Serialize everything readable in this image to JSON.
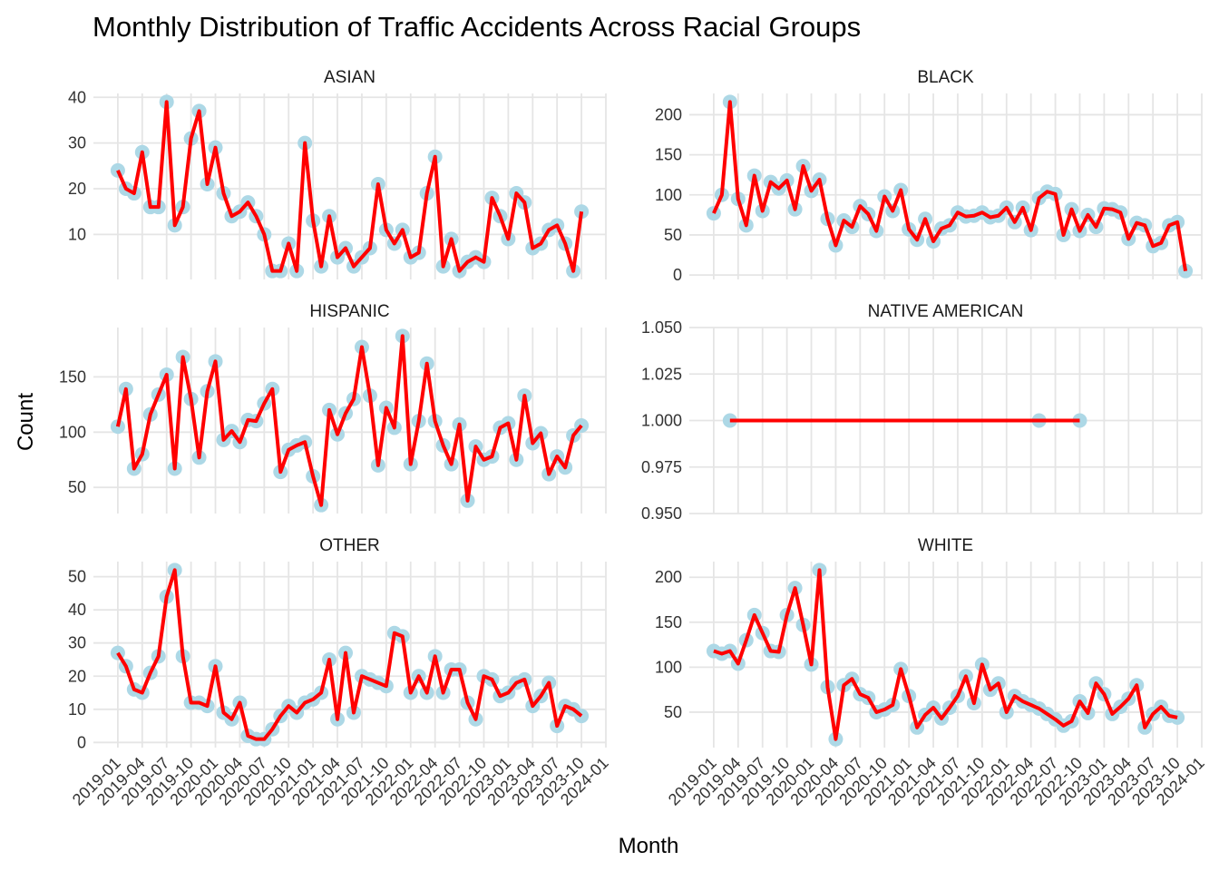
{
  "title": "Monthly Distribution of Traffic Accidents Across Racial Groups",
  "x_label": "Month",
  "y_label": "Count",
  "chart_data": [
    {
      "type": "line",
      "title": "ASIAN",
      "color": "#ff0000",
      "point_color": "#add8e6",
      "grid": true,
      "x": [
        "2019-01",
        "2019-02",
        "2019-03",
        "2019-04",
        "2019-05",
        "2019-06",
        "2019-07",
        "2019-08",
        "2019-09",
        "2019-10",
        "2019-11",
        "2019-12",
        "2020-01",
        "2020-02",
        "2020-03",
        "2020-04",
        "2020-05",
        "2020-06",
        "2020-07",
        "2020-08",
        "2020-09",
        "2020-10",
        "2020-11",
        "2020-12",
        "2021-01",
        "2021-02",
        "2021-03",
        "2021-04",
        "2021-05",
        "2021-06",
        "2021-07",
        "2021-08",
        "2021-09",
        "2021-10",
        "2021-11",
        "2021-12",
        "2022-01",
        "2022-02",
        "2022-03",
        "2022-04",
        "2022-05",
        "2022-06",
        "2022-07",
        "2022-08",
        "2022-09",
        "2022-10",
        "2022-11",
        "2022-12",
        "2023-01",
        "2023-02",
        "2023-03",
        "2023-04",
        "2023-05",
        "2023-06",
        "2023-07",
        "2023-08",
        "2023-09",
        "2023-10"
      ],
      "values": [
        24,
        20,
        19,
        28,
        16,
        16,
        39,
        12,
        16,
        31,
        37,
        21,
        29,
        19,
        14,
        15,
        17,
        14,
        10,
        2,
        2,
        8,
        2,
        30,
        13,
        3,
        14,
        5,
        7,
        3,
        5,
        7,
        21,
        11,
        8,
        11,
        5,
        6,
        19,
        27,
        3,
        9,
        2,
        4,
        5,
        4,
        18,
        14,
        9,
        19,
        17,
        7,
        8,
        11,
        12,
        8,
        2,
        15
      ],
      "ylim": [
        0.15,
        40.85
      ],
      "yticks": [
        10,
        20,
        30,
        40
      ],
      "xlim": [
        "2018-10",
        "2024-01"
      ],
      "xticks": [
        "2019-01",
        "2019-04",
        "2019-07",
        "2019-10",
        "2020-01",
        "2020-04",
        "2020-07",
        "2020-10",
        "2021-01",
        "2021-04",
        "2021-07",
        "2021-10",
        "2022-01",
        "2022-04",
        "2022-07",
        "2022-10",
        "2023-01",
        "2023-04",
        "2023-07",
        "2023-10",
        "2024-01"
      ]
    },
    {
      "type": "line",
      "title": "BLACK",
      "color": "#ff0000",
      "point_color": "#add8e6",
      "grid": true,
      "x": [
        "2019-01",
        "2019-02",
        "2019-03",
        "2019-04",
        "2019-05",
        "2019-06",
        "2019-07",
        "2019-08",
        "2019-09",
        "2019-10",
        "2019-11",
        "2019-12",
        "2020-01",
        "2020-02",
        "2020-03",
        "2020-04",
        "2020-05",
        "2020-06",
        "2020-07",
        "2020-08",
        "2020-09",
        "2020-10",
        "2020-11",
        "2020-12",
        "2021-01",
        "2021-02",
        "2021-03",
        "2021-04",
        "2021-05",
        "2021-06",
        "2021-07",
        "2021-08",
        "2021-09",
        "2021-10",
        "2021-11",
        "2021-12",
        "2022-01",
        "2022-02",
        "2022-03",
        "2022-04",
        "2022-05",
        "2022-06",
        "2022-07",
        "2022-08",
        "2022-09",
        "2022-10",
        "2022-11",
        "2022-12",
        "2023-01",
        "2023-02",
        "2023-03",
        "2023-04",
        "2023-05",
        "2023-06",
        "2023-07",
        "2023-08",
        "2023-09",
        "2023-10",
        "2023-11"
      ],
      "values": [
        77,
        100,
        216,
        95,
        62,
        124,
        80,
        116,
        108,
        118,
        82,
        136,
        105,
        119,
        70,
        37,
        68,
        60,
        86,
        76,
        55,
        98,
        80,
        106,
        57,
        44,
        70,
        42,
        58,
        62,
        78,
        73,
        74,
        78,
        72,
        74,
        84,
        66,
        84,
        56,
        96,
        104,
        101,
        50,
        82,
        55,
        75,
        60,
        83,
        82,
        78,
        45,
        65,
        62,
        36,
        40,
        62,
        66,
        5
      ],
      "ylim": [
        -5.55,
        226.55
      ],
      "yticks": [
        0,
        50,
        100,
        150,
        200
      ],
      "xlim": [
        "2018-10",
        "2024-01"
      ],
      "xticks": [
        "2019-01",
        "2019-04",
        "2019-07",
        "2019-10",
        "2020-01",
        "2020-04",
        "2020-07",
        "2020-10",
        "2021-01",
        "2021-04",
        "2021-07",
        "2021-10",
        "2022-01",
        "2022-04",
        "2022-07",
        "2022-10",
        "2023-01",
        "2023-04",
        "2023-07",
        "2023-10",
        "2024-01"
      ]
    },
    {
      "type": "line",
      "title": "HISPANIC",
      "color": "#ff0000",
      "point_color": "#add8e6",
      "grid": true,
      "x": [
        "2019-01",
        "2019-02",
        "2019-03",
        "2019-04",
        "2019-05",
        "2019-06",
        "2019-07",
        "2019-08",
        "2019-09",
        "2019-10",
        "2019-11",
        "2019-12",
        "2020-01",
        "2020-02",
        "2020-03",
        "2020-04",
        "2020-05",
        "2020-06",
        "2020-07",
        "2020-08",
        "2020-09",
        "2020-10",
        "2020-11",
        "2020-12",
        "2021-01",
        "2021-02",
        "2021-03",
        "2021-04",
        "2021-05",
        "2021-06",
        "2021-07",
        "2021-08",
        "2021-09",
        "2021-10",
        "2021-11",
        "2021-12",
        "2022-01",
        "2022-02",
        "2022-03",
        "2022-04",
        "2022-05",
        "2022-06",
        "2022-07",
        "2022-08",
        "2022-09",
        "2022-10",
        "2022-11",
        "2022-12",
        "2023-01",
        "2023-02",
        "2023-03",
        "2023-04",
        "2023-05",
        "2023-06",
        "2023-07",
        "2023-08",
        "2023-09",
        "2023-10"
      ],
      "values": [
        105,
        139,
        67,
        80,
        116,
        134,
        152,
        67,
        168,
        130,
        77,
        137,
        164,
        93,
        101,
        91,
        111,
        110,
        126,
        139,
        64,
        84,
        88,
        91,
        60,
        34,
        120,
        98,
        117,
        130,
        177,
        133,
        70,
        122,
        104,
        187,
        71,
        110,
        162,
        110,
        88,
        71,
        107,
        38,
        87,
        75,
        78,
        104,
        108,
        75,
        133,
        90,
        99,
        62,
        78,
        68,
        97,
        106
      ],
      "ylim": [
        26.35,
        194.65
      ],
      "yticks": [
        50,
        100,
        150
      ],
      "xlim": [
        "2018-10",
        "2024-01"
      ],
      "xticks": [
        "2019-01",
        "2019-04",
        "2019-07",
        "2019-10",
        "2020-01",
        "2020-04",
        "2020-07",
        "2020-10",
        "2021-01",
        "2021-04",
        "2021-07",
        "2021-10",
        "2022-01",
        "2022-04",
        "2022-07",
        "2022-10",
        "2023-01",
        "2023-04",
        "2023-07",
        "2023-10",
        "2024-01"
      ]
    },
    {
      "type": "line",
      "title": "NATIVE AMERICAN",
      "color": "#ff0000",
      "point_color": "#add8e6",
      "grid": true,
      "x": [
        "2019-03",
        "2022-05",
        "2022-10"
      ],
      "values": [
        1,
        1,
        1
      ],
      "ylim": [
        0.95,
        1.05
      ],
      "yticks": [
        {
          "value": 0.95,
          "label": "0.950"
        },
        {
          "value": 0.975,
          "label": "0.975"
        },
        {
          "value": 1,
          "label": "1.000"
        },
        {
          "value": 1.025,
          "label": "1.025"
        },
        {
          "value": 1.05,
          "label": "1.050"
        }
      ],
      "xlim": [
        "2018-10",
        "2024-01"
      ],
      "xticks": [
        "2019-01",
        "2019-04",
        "2019-07",
        "2019-10",
        "2020-01",
        "2020-04",
        "2020-07",
        "2020-10",
        "2021-01",
        "2021-04",
        "2021-07",
        "2021-10",
        "2022-01",
        "2022-04",
        "2022-07",
        "2022-10",
        "2023-01",
        "2023-04",
        "2023-07",
        "2023-10",
        "2024-01"
      ]
    },
    {
      "type": "line",
      "title": "OTHER",
      "color": "#ff0000",
      "point_color": "#add8e6",
      "grid": true,
      "x": [
        "2019-01",
        "2019-02",
        "2019-03",
        "2019-04",
        "2019-05",
        "2019-06",
        "2019-07",
        "2019-08",
        "2019-09",
        "2019-10",
        "2019-11",
        "2019-12",
        "2020-01",
        "2020-02",
        "2020-03",
        "2020-04",
        "2020-05",
        "2020-06",
        "2020-07",
        "2020-08",
        "2020-09",
        "2020-10",
        "2020-11",
        "2020-12",
        "2021-01",
        "2021-02",
        "2021-03",
        "2021-04",
        "2021-05",
        "2021-06",
        "2021-07",
        "2021-08",
        "2021-09",
        "2021-10",
        "2021-11",
        "2021-12",
        "2022-01",
        "2022-02",
        "2022-03",
        "2022-04",
        "2022-05",
        "2022-06",
        "2022-07",
        "2022-08",
        "2022-09",
        "2022-10",
        "2022-11",
        "2022-12",
        "2023-01",
        "2023-02",
        "2023-03",
        "2023-04",
        "2023-05",
        "2023-06",
        "2023-07",
        "2023-08",
        "2023-09",
        "2023-10"
      ],
      "values": [
        27,
        23,
        16,
        15,
        21,
        26,
        44,
        52,
        26,
        12,
        12,
        11,
        23,
        9,
        7,
        12,
        2,
        1,
        1,
        4,
        8,
        11,
        9,
        12,
        13,
        15,
        25,
        7,
        27,
        9,
        20,
        19,
        18,
        17,
        33,
        32,
        15,
        20,
        15,
        26,
        15,
        22,
        22,
        12,
        7,
        20,
        19,
        14,
        15,
        18,
        19,
        11,
        14,
        18,
        5,
        11,
        10,
        8
      ],
      "ylim": [
        -1.55,
        54.55
      ],
      "yticks": [
        0,
        10,
        20,
        30,
        40,
        50
      ],
      "xlim": [
        "2018-10",
        "2024-01"
      ],
      "xticks": [
        "2019-01",
        "2019-04",
        "2019-07",
        "2019-10",
        "2020-01",
        "2020-04",
        "2020-07",
        "2020-10",
        "2021-01",
        "2021-04",
        "2021-07",
        "2021-10",
        "2022-01",
        "2022-04",
        "2022-07",
        "2022-10",
        "2023-01",
        "2023-04",
        "2023-07",
        "2023-10",
        "2024-01"
      ]
    },
    {
      "type": "line",
      "title": "WHITE",
      "color": "#ff0000",
      "point_color": "#add8e6",
      "grid": true,
      "x": [
        "2019-01",
        "2019-02",
        "2019-03",
        "2019-04",
        "2019-05",
        "2019-06",
        "2019-07",
        "2019-08",
        "2019-09",
        "2019-10",
        "2019-11",
        "2019-12",
        "2020-01",
        "2020-02",
        "2020-03",
        "2020-04",
        "2020-05",
        "2020-06",
        "2020-07",
        "2020-08",
        "2020-09",
        "2020-10",
        "2020-11",
        "2020-12",
        "2021-01",
        "2021-02",
        "2021-03",
        "2021-04",
        "2021-05",
        "2021-06",
        "2021-07",
        "2021-08",
        "2021-09",
        "2021-10",
        "2021-11",
        "2021-12",
        "2022-01",
        "2022-02",
        "2022-03",
        "2022-04",
        "2022-05",
        "2022-06",
        "2022-07",
        "2022-08",
        "2022-09",
        "2022-10",
        "2022-11",
        "2022-12",
        "2023-01",
        "2023-02",
        "2023-03",
        "2023-04",
        "2023-05",
        "2023-06",
        "2023-07",
        "2023-08",
        "2023-09",
        "2023-10"
      ],
      "values": [
        118,
        115,
        118,
        104,
        130,
        158,
        138,
        118,
        117,
        158,
        188,
        147,
        103,
        208,
        78,
        20,
        80,
        87,
        70,
        66,
        50,
        53,
        58,
        98,
        68,
        33,
        47,
        55,
        43,
        55,
        68,
        90,
        60,
        103,
        75,
        82,
        50,
        68,
        62,
        58,
        54,
        48,
        42,
        35,
        40,
        62,
        49,
        82,
        70,
        48,
        56,
        65,
        80,
        33,
        48,
        56,
        46,
        44
      ],
      "ylim": [
        10.6,
        217.4
      ],
      "yticks": [
        50,
        100,
        150,
        200
      ],
      "xlim": [
        "2018-10",
        "2024-01"
      ],
      "xticks": [
        "2019-01",
        "2019-04",
        "2019-07",
        "2019-10",
        "2020-01",
        "2020-04",
        "2020-07",
        "2020-10",
        "2021-01",
        "2021-04",
        "2021-07",
        "2021-10",
        "2022-01",
        "2022-04",
        "2022-07",
        "2022-10",
        "2023-01",
        "2023-04",
        "2023-07",
        "2023-10",
        "2024-01"
      ]
    }
  ]
}
